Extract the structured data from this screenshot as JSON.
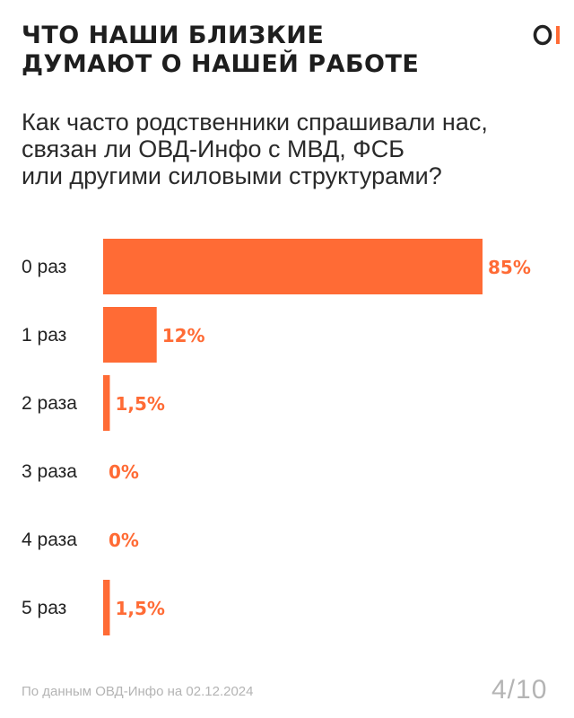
{
  "header": {
    "title_lines": [
      "ЧТО НАШИ БЛИЗКИЕ",
      "ДУМАЮТ О НАШЕЙ РАБОТЕ"
    ],
    "logo_icon": "ovd-info-logo-icon"
  },
  "question": {
    "lines": [
      "Как часто родственники спрашивали нас,",
      "связан ли ОВД-Инфо с МВД, ФСБ",
      "или другими силовыми структурами?"
    ]
  },
  "chart_data": {
    "type": "bar",
    "orientation": "horizontal",
    "categories": [
      "0 раз",
      "1 раз",
      "2 раза",
      "3 раза",
      "4 раза",
      "5 раз"
    ],
    "values": [
      85,
      12,
      1.5,
      0,
      0,
      1.5
    ],
    "value_labels": [
      "85%",
      "12%",
      "1,5%",
      "0%",
      "0%",
      "1,5%"
    ],
    "unit": "%",
    "xlim": [
      0,
      85
    ],
    "grid": false,
    "legend": "none",
    "colors": {
      "bar": "#ff6b35",
      "label": "#ff6b35",
      "category": "#222222"
    }
  },
  "footer": {
    "source": "По данным ОВД-Инфо на 02.12.2024",
    "page": "4/10"
  }
}
